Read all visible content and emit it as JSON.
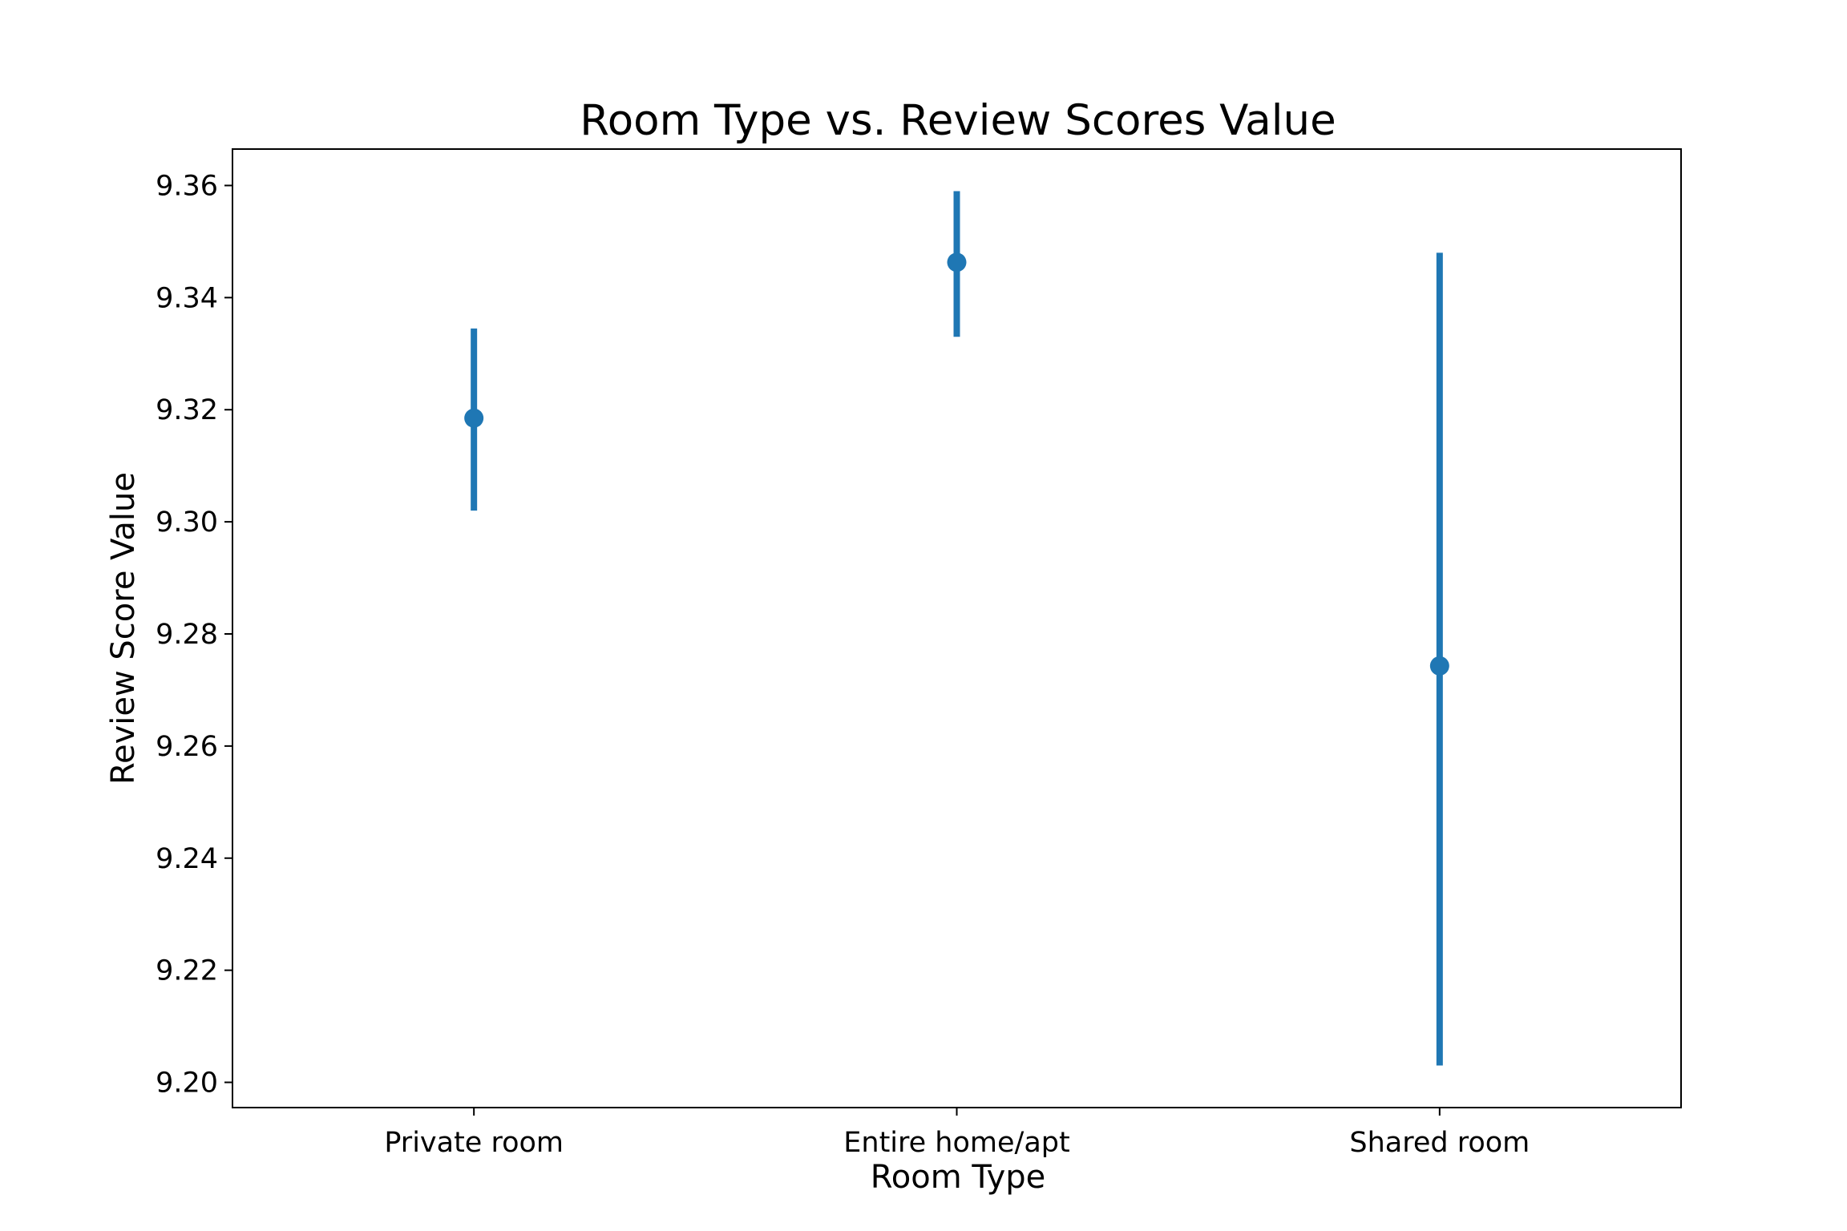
{
  "chart_data": {
    "type": "scatter",
    "title": "Room Type vs. Review Scores Value",
    "xlabel": "Room Type",
    "ylabel": "Review Score Value",
    "categories": [
      "Private room",
      "Entire home/apt",
      "Shared room"
    ],
    "values": [
      9.3185,
      9.3463,
      9.2743
    ],
    "error_low": [
      9.302,
      9.333,
      9.203
    ],
    "error_high": [
      9.3345,
      9.359,
      9.348
    ],
    "ylim": [
      9.1955,
      9.3665
    ],
    "yticks": [
      9.2,
      9.22,
      9.24,
      9.26,
      9.28,
      9.3,
      9.32,
      9.34,
      9.36
    ],
    "color": "#1f77b4",
    "grid": false,
    "legend": false
  }
}
